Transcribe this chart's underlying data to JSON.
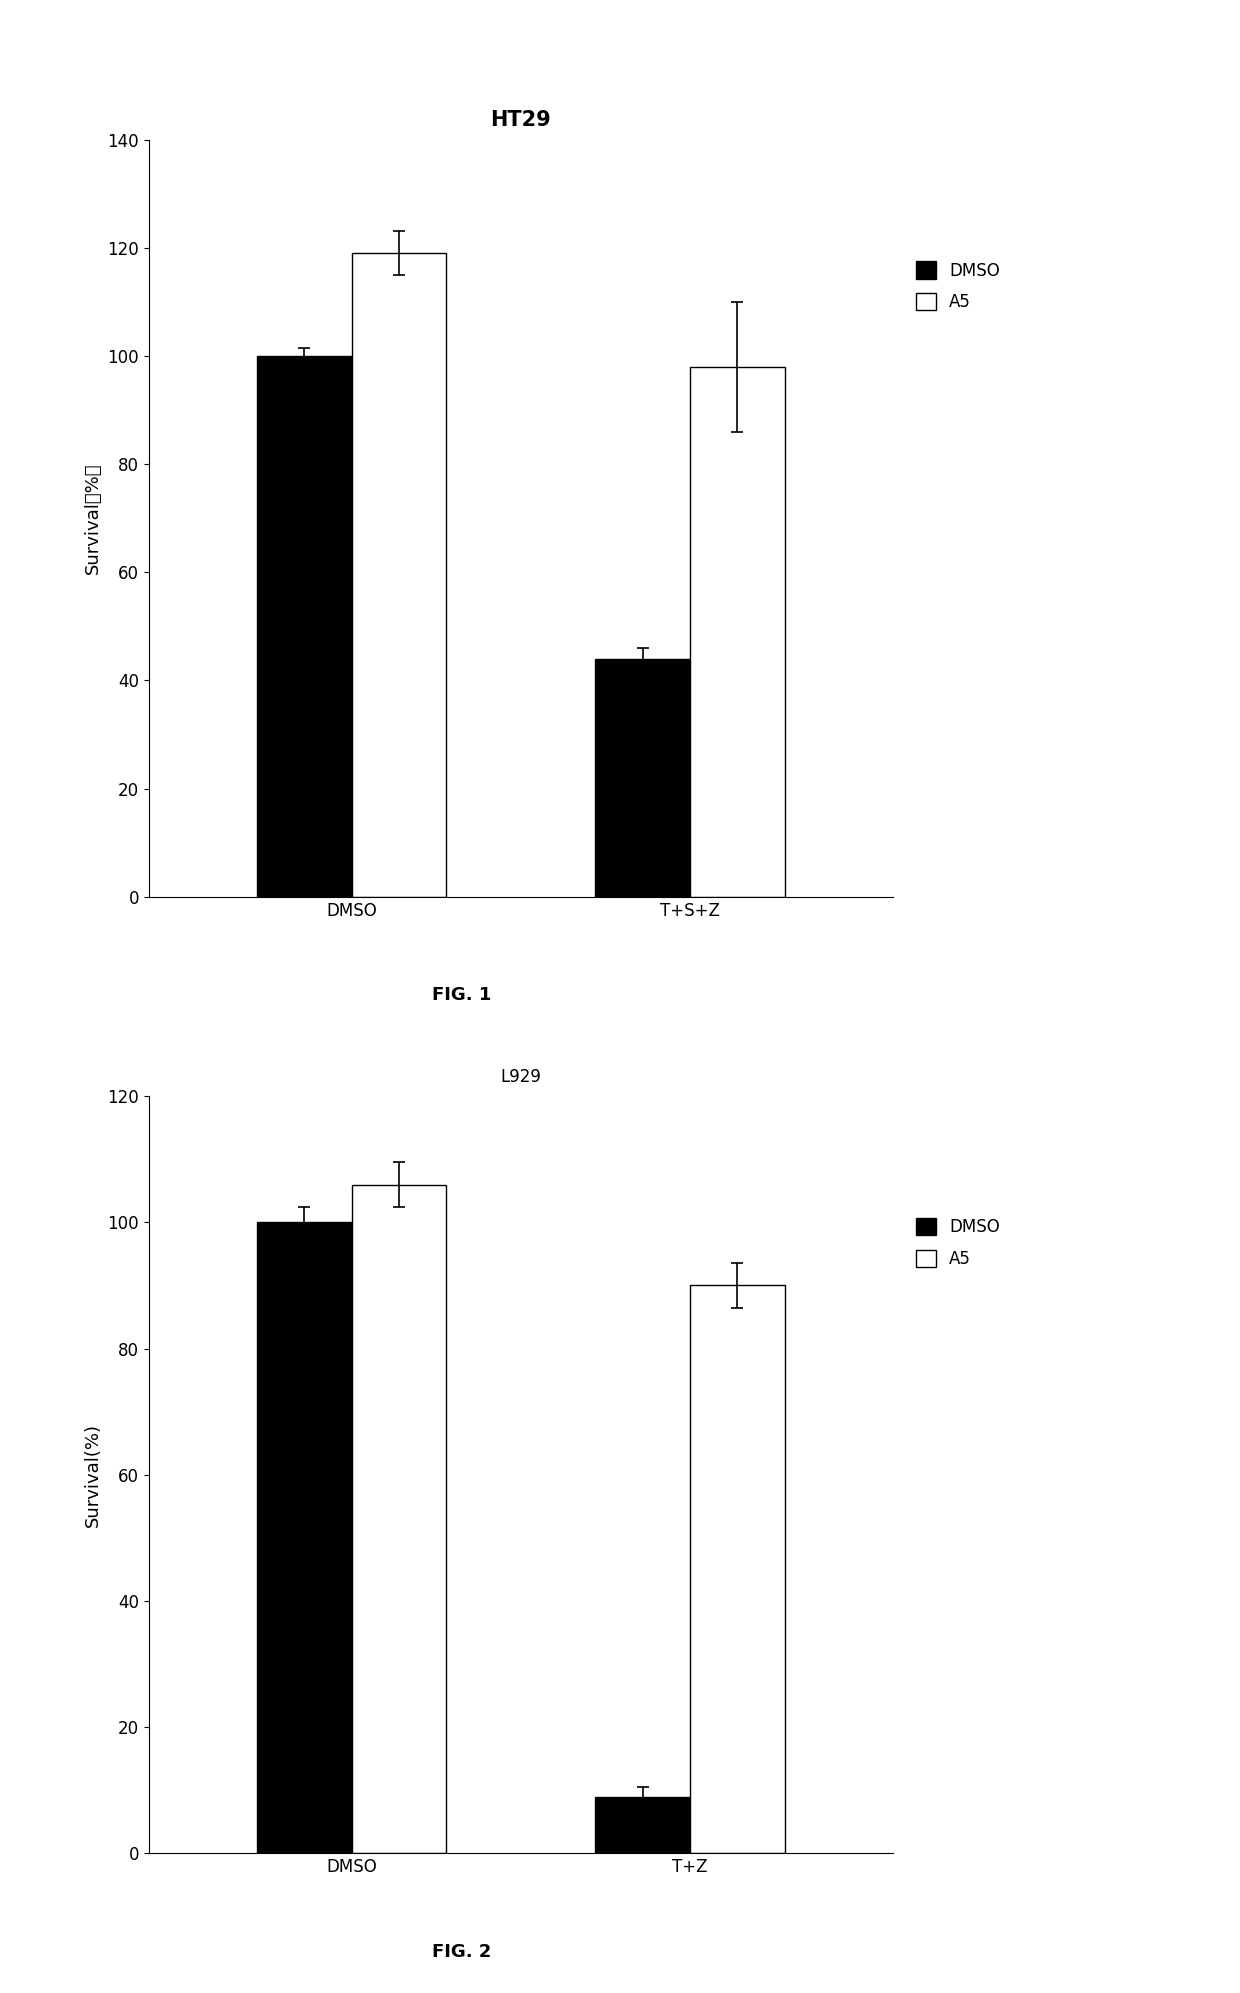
{
  "fig1": {
    "title": "HT29",
    "title_fontsize": 15,
    "title_fontweight": "bold",
    "ylabel": "Survival（%）",
    "ylabel_fontsize": 13,
    "ylim": [
      0,
      140
    ],
    "yticks": [
      0,
      20,
      40,
      60,
      80,
      100,
      120,
      140
    ],
    "categories": [
      "DMSO",
      "T+S+Z"
    ],
    "dmso_values": [
      100,
      44
    ],
    "a5_values": [
      119,
      98
    ],
    "dmso_errors": [
      1.5,
      2.0
    ],
    "a5_errors": [
      4.0,
      12.0
    ],
    "fig_label": "FIG. 1",
    "fig_label_fontsize": 13,
    "fig_label_fontweight": "bold"
  },
  "fig2": {
    "title": "L929",
    "title_fontsize": 12,
    "title_fontweight": "normal",
    "ylabel": "Survival(%)",
    "ylabel_fontsize": 13,
    "ylim": [
      0,
      120
    ],
    "yticks": [
      0,
      20,
      40,
      60,
      80,
      100,
      120
    ],
    "categories": [
      "DMSO",
      "T+Z"
    ],
    "dmso_values": [
      100,
      9
    ],
    "a5_values": [
      106,
      90
    ],
    "dmso_errors": [
      2.5,
      1.5
    ],
    "a5_errors": [
      3.5,
      3.5
    ],
    "fig_label": "FIG. 2",
    "fig_label_fontsize": 13,
    "fig_label_fontweight": "bold"
  },
  "bar_width": 0.28,
  "dmso_color": "#000000",
  "a5_color": "#ffffff",
  "a5_edgecolor": "#000000",
  "legend_labels": [
    "DMSO",
    "A5"
  ],
  "background_color": "#ffffff",
  "tick_fontsize": 12,
  "category_fontsize": 12,
  "error_capsize": 4,
  "error_linewidth": 1.2,
  "error_color": "#000000"
}
